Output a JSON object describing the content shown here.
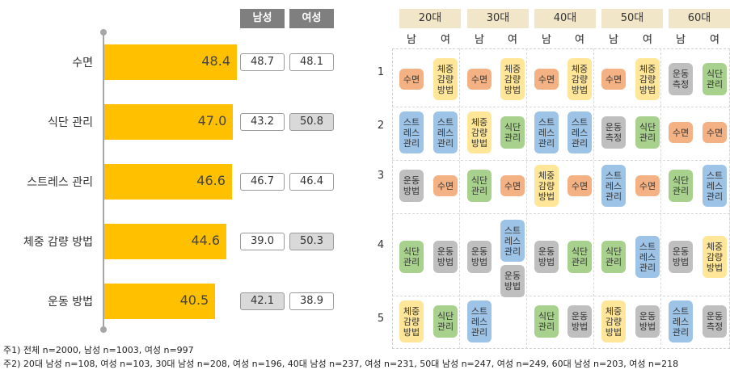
{
  "chart_data": [
    {
      "type": "bar",
      "orientation": "horizontal",
      "categories": [
        "수면",
        "식단 관리",
        "스트레스 관리",
        "체중 감량 방법",
        "운동 방법"
      ],
      "values": [
        48.4,
        47.0,
        46.6,
        44.6,
        40.5
      ],
      "xlim": [
        0,
        60
      ],
      "grid": false,
      "side_table": {
        "columns": [
          "남성",
          "여성"
        ],
        "rows": [
          [
            "48.7",
            "48.1"
          ],
          [
            "43.2",
            "50.8"
          ],
          [
            "46.7",
            "46.4"
          ],
          [
            "39.0",
            "50.3"
          ],
          [
            "42.1",
            "38.9"
          ]
        ],
        "highlighted": [
          [
            false,
            false
          ],
          [
            false,
            true
          ],
          [
            false,
            false
          ],
          [
            false,
            true
          ],
          [
            true,
            false
          ]
        ]
      }
    },
    {
      "type": "table",
      "age_groups": [
        "20대",
        "30대",
        "40대",
        "50대",
        "60대"
      ],
      "genders": [
        "남",
        "여"
      ],
      "ranks": [
        "1",
        "2",
        "3",
        "4",
        "5"
      ],
      "legend_categories": {
        "sleep": {
          "color": "#f4b183"
        },
        "weight": {
          "color": "#ffe699"
        },
        "diet": {
          "color": "#a9d18e"
        },
        "stress": {
          "color": "#9dc3e6"
        },
        "exercise": {
          "color": "#bfbfbf"
        }
      },
      "columns": [
        {
          "cells": [
            [
              {
                "t": "수면",
                "k": "sleep"
              }
            ],
            [
              {
                "t": "스트레스관리",
                "k": "stress"
              }
            ],
            [
              {
                "t": "운동방법",
                "k": "exercise"
              }
            ],
            [
              {
                "t": "식단관리",
                "k": "diet"
              }
            ],
            [
              {
                "t": "체중감량방법",
                "k": "weight"
              }
            ]
          ]
        },
        {
          "cells": [
            [
              {
                "t": "체중감량방법",
                "k": "weight"
              }
            ],
            [
              {
                "t": "스트레스관리",
                "k": "stress"
              }
            ],
            [
              {
                "t": "수면",
                "k": "sleep"
              }
            ],
            [
              {
                "t": "운동방법",
                "k": "exercise"
              }
            ],
            [
              {
                "t": "식단관리",
                "k": "diet"
              }
            ]
          ]
        },
        {
          "cells": [
            [
              {
                "t": "수면",
                "k": "sleep"
              }
            ],
            [
              {
                "t": "체중감량방법",
                "k": "weight"
              }
            ],
            [
              {
                "t": "식단관리",
                "k": "diet"
              }
            ],
            [
              {
                "t": "운동방법",
                "k": "exercise"
              }
            ],
            [
              {
                "t": "스트레스관리",
                "k": "stress"
              }
            ]
          ]
        },
        {
          "cells": [
            [
              {
                "t": "체중감량방법",
                "k": "weight"
              }
            ],
            [
              {
                "t": "식단관리",
                "k": "diet"
              }
            ],
            [
              {
                "t": "수면",
                "k": "sleep"
              }
            ],
            [
              {
                "t": "스트레스관리",
                "k": "stress"
              },
              {
                "t": "운동방법",
                "k": "exercise"
              }
            ],
            []
          ]
        },
        {
          "cells": [
            [
              {
                "t": "수면",
                "k": "sleep"
              }
            ],
            [
              {
                "t": "스트레스관리",
                "k": "stress"
              }
            ],
            [
              {
                "t": "체중감량방법",
                "k": "weight"
              }
            ],
            [
              {
                "t": "운동방법",
                "k": "exercise"
              }
            ],
            [
              {
                "t": "식단관리",
                "k": "diet"
              }
            ]
          ]
        },
        {
          "cells": [
            [
              {
                "t": "체중감량방법",
                "k": "weight"
              }
            ],
            [
              {
                "t": "스트레스관리",
                "k": "stress"
              }
            ],
            [
              {
                "t": "수면",
                "k": "sleep"
              }
            ],
            [
              {
                "t": "식단관리",
                "k": "diet"
              }
            ],
            [
              {
                "t": "운동방법",
                "k": "exercise"
              }
            ]
          ]
        },
        {
          "cells": [
            [
              {
                "t": "수면",
                "k": "sleep"
              }
            ],
            [
              {
                "t": "운동측정",
                "k": "exercise"
              }
            ],
            [
              {
                "t": "스트레스관리",
                "k": "stress"
              }
            ],
            [
              {
                "t": "식단관리",
                "k": "diet"
              }
            ],
            [
              {
                "t": "체중감량방법",
                "k": "weight"
              }
            ]
          ]
        },
        {
          "cells": [
            [
              {
                "t": "체중감량방법",
                "k": "weight"
              }
            ],
            [
              {
                "t": "식단관리",
                "k": "diet"
              }
            ],
            [
              {
                "t": "수면",
                "k": "sleep"
              }
            ],
            [
              {
                "t": "스트레스관리",
                "k": "stress"
              }
            ],
            [
              {
                "t": "운동방법",
                "k": "exercise"
              }
            ]
          ]
        },
        {
          "cells": [
            [
              {
                "t": "운동측정",
                "k": "exercise"
              }
            ],
            [
              {
                "t": "수면",
                "k": "sleep"
              }
            ],
            [
              {
                "t": "식단관리",
                "k": "diet"
              }
            ],
            [
              {
                "t": "운동방법",
                "k": "exercise"
              }
            ],
            [
              {
                "t": "스트레스관리",
                "k": "stress"
              }
            ]
          ]
        },
        {
          "cells": [
            [
              {
                "t": "식단관리",
                "k": "diet"
              }
            ],
            [
              {
                "t": "수면",
                "k": "sleep"
              }
            ],
            [
              {
                "t": "스트레스관리",
                "k": "stress"
              }
            ],
            [
              {
                "t": "체중감량방법",
                "k": "weight"
              }
            ],
            [
              {
                "t": "운동측정",
                "k": "exercise"
              }
            ]
          ]
        }
      ]
    }
  ],
  "notes": {
    "note1": "주1) 전체 n=2000, 남성 n=1003, 여성 n=997",
    "note2": "주2) 20대 남성 n=108, 여성 n=103, 30대 남성 n=208, 여성 n=196, 40대 남성 n=237, 여성 n=231, 50대 남성 n=247, 여성 n=249, 60대 남성 n=203, 여성 n=218"
  }
}
